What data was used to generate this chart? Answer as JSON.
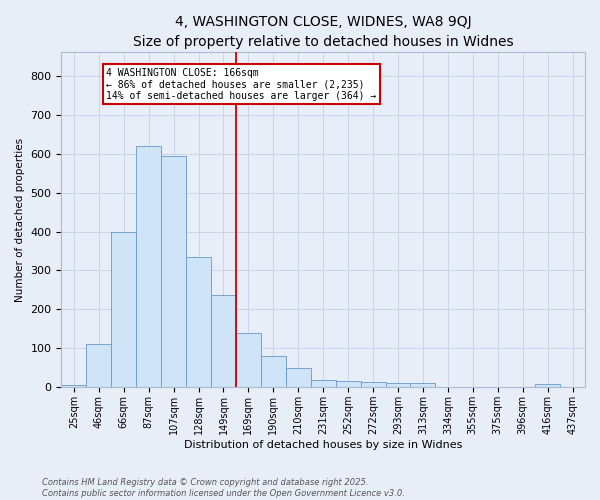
{
  "title": "4, WASHINGTON CLOSE, WIDNES, WA8 9QJ",
  "subtitle": "Size of property relative to detached houses in Widnes",
  "xlabel": "Distribution of detached houses by size in Widnes",
  "ylabel": "Number of detached properties",
  "bar_labels": [
    "25sqm",
    "46sqm",
    "66sqm",
    "87sqm",
    "107sqm",
    "128sqm",
    "149sqm",
    "169sqm",
    "190sqm",
    "210sqm",
    "231sqm",
    "252sqm",
    "272sqm",
    "293sqm",
    "313sqm",
    "334sqm",
    "355sqm",
    "375sqm",
    "396sqm",
    "416sqm",
    "437sqm"
  ],
  "bar_heights": [
    5,
    110,
    400,
    620,
    595,
    335,
    238,
    140,
    80,
    50,
    20,
    15,
    13,
    12,
    10,
    0,
    0,
    0,
    0,
    8,
    0
  ],
  "bar_color": "#d0e4f7",
  "bar_edge_color": "#6699cc",
  "vline_x": 7,
  "vline_color": "#cc0000",
  "annotation_title": "4 WASHINGTON CLOSE: 166sqm",
  "annotation_line2": "← 86% of detached houses are smaller (2,235)",
  "annotation_line3": "14% of semi-detached houses are larger (364) →",
  "annotation_box_edgecolor": "#cc0000",
  "annotation_fill": "white",
  "ylim": [
    0,
    860
  ],
  "yticks": [
    0,
    100,
    200,
    300,
    400,
    500,
    600,
    700,
    800
  ],
  "footnote1": "Contains HM Land Registry data © Crown copyright and database right 2025.",
  "footnote2": "Contains public sector information licensed under the Open Government Licence v3.0.",
  "bg_color": "#e8eef8",
  "grid_color": "#c8d4e8",
  "title_fontsize": 10,
  "subtitle_fontsize": 9
}
